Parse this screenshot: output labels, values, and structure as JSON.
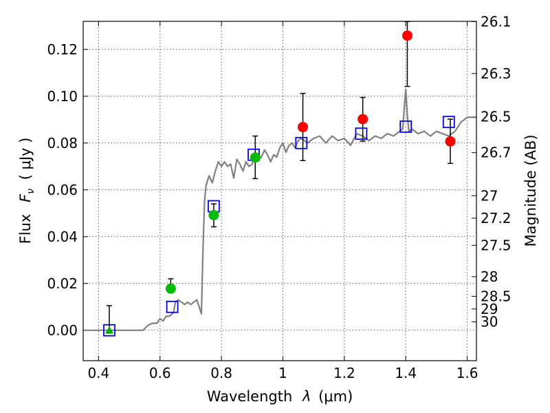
{
  "chart_data": {
    "type": "scatter",
    "xlabel_prefix": "Wavelength",
    "xlabel_unit": "(μm)",
    "ylabel_prefix": "Flux",
    "ylabel_unit": "( μJy )",
    "y2label": "Magnitude (AB)",
    "xlim": [
      0.35,
      1.63
    ],
    "ylim": [
      -0.013,
      0.132
    ],
    "grid": true,
    "x_ticks": [
      0.4,
      0.6,
      0.8,
      1.0,
      1.2,
      1.4,
      1.6
    ],
    "x_tick_labels": [
      "0.4",
      "0.6",
      "0.8",
      "1",
      "1.2",
      "1.4",
      "1.6"
    ],
    "y_ticks": [
      0.0,
      0.02,
      0.04,
      0.06,
      0.08,
      0.1,
      0.12
    ],
    "y_tick_labels": [
      "0.00",
      "0.02",
      "0.04",
      "0.06",
      "0.08",
      "0.10",
      "0.12"
    ],
    "y2_ticks": [
      {
        "label": "26.1",
        "flux": 0.1319
      },
      {
        "label": "26.3",
        "flux": 0.1097
      },
      {
        "label": "26.5",
        "flux": 0.0912
      },
      {
        "label": "26.7",
        "flux": 0.0759
      },
      {
        "label": "27",
        "flux": 0.0575
      },
      {
        "label": "27.2",
        "flux": 0.0479
      },
      {
        "label": "27.5",
        "flux": 0.0363
      },
      {
        "label": "28",
        "flux": 0.0229
      },
      {
        "label": "28.5",
        "flux": 0.0145
      },
      {
        "label": "29",
        "flux": 0.0091
      },
      {
        "label": "30",
        "flux": 0.0036
      }
    ],
    "series": [
      {
        "kind": "model_line",
        "color": "#808080",
        "x": [
          0.35,
          0.545,
          0.56,
          0.575,
          0.59,
          0.6,
          0.61,
          0.62,
          0.63,
          0.64,
          0.645,
          0.65,
          0.66,
          0.67,
          0.68,
          0.69,
          0.7,
          0.71,
          0.72,
          0.73,
          0.735,
          0.74,
          0.745,
          0.75,
          0.76,
          0.77,
          0.78,
          0.79,
          0.8,
          0.81,
          0.82,
          0.83,
          0.84,
          0.85,
          0.86,
          0.87,
          0.88,
          0.89,
          0.9,
          0.91,
          0.92,
          0.93,
          0.94,
          0.95,
          0.96,
          0.97,
          0.98,
          0.99,
          1.0,
          1.01,
          1.02,
          1.03,
          1.04,
          1.05,
          1.06,
          1.08,
          1.1,
          1.12,
          1.14,
          1.16,
          1.18,
          1.2,
          1.22,
          1.24,
          1.26,
          1.28,
          1.3,
          1.32,
          1.34,
          1.36,
          1.38,
          1.39,
          1.395,
          1.4,
          1.405,
          1.41,
          1.42,
          1.44,
          1.46,
          1.48,
          1.5,
          1.52,
          1.54,
          1.56,
          1.58,
          1.6,
          1.63
        ],
        "y": [
          0.0,
          0.0,
          0.002,
          0.003,
          0.003,
          0.005,
          0.004,
          0.006,
          0.006,
          0.007,
          0.008,
          0.012,
          0.013,
          0.012,
          0.011,
          0.012,
          0.011,
          0.012,
          0.013,
          0.009,
          0.007,
          0.035,
          0.055,
          0.062,
          0.066,
          0.063,
          0.068,
          0.072,
          0.07,
          0.072,
          0.07,
          0.071,
          0.065,
          0.073,
          0.071,
          0.068,
          0.072,
          0.07,
          0.071,
          0.076,
          0.073,
          0.074,
          0.077,
          0.075,
          0.072,
          0.075,
          0.074,
          0.078,
          0.08,
          0.076,
          0.079,
          0.08,
          0.078,
          0.081,
          0.082,
          0.08,
          0.082,
          0.083,
          0.08,
          0.083,
          0.081,
          0.082,
          0.079,
          0.084,
          0.083,
          0.081,
          0.083,
          0.082,
          0.084,
          0.083,
          0.085,
          0.086,
          0.095,
          0.103,
          0.092,
          0.085,
          0.086,
          0.084,
          0.085,
          0.083,
          0.085,
          0.084,
          0.083,
          0.085,
          0.089,
          0.091,
          0.091
        ]
      },
      {
        "kind": "model_photometry",
        "marker": "open-square",
        "color": "#0000ff",
        "x": [
          0.435,
          0.64,
          0.775,
          0.905,
          1.06,
          1.255,
          1.4,
          1.54
        ],
        "y": [
          0.0,
          0.01,
          0.053,
          0.075,
          0.08,
          0.084,
          0.087,
          0.089
        ]
      },
      {
        "kind": "upper_limit",
        "marker": "triangle",
        "color": "#00aa00",
        "x": [
          0.435
        ],
        "y": [
          0.0
        ],
        "err_low": [
          0.0
        ],
        "err_high": [
          0.0105
        ]
      },
      {
        "kind": "detection",
        "marker": "circle",
        "color": "#00bb00",
        "x": [
          0.635,
          0.775,
          0.91
        ],
        "y": [
          0.0178,
          0.0492,
          0.0738
        ],
        "err_low": [
          0.0178,
          0.0442,
          0.0648
        ],
        "err_high": [
          0.022,
          0.054,
          0.083
        ]
      },
      {
        "kind": "detection",
        "marker": "circle",
        "color": "#ff0000",
        "x": [
          1.065,
          1.26,
          1.405,
          1.545
        ],
        "y": [
          0.0868,
          0.0902,
          0.1259,
          0.0807
        ],
        "err_low": [
          0.0725,
          0.0808,
          0.1042,
          0.0713
        ],
        "err_high": [
          0.1012,
          0.0995,
          0.1319,
          0.0902
        ]
      }
    ]
  }
}
